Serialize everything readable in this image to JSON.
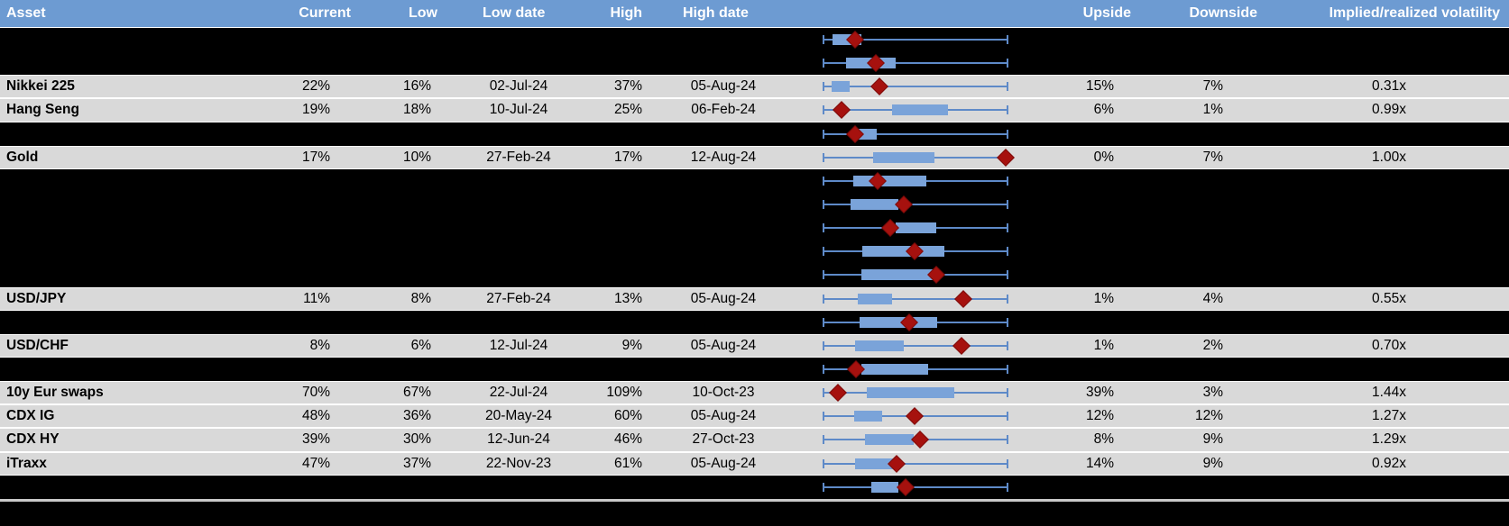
{
  "colors": {
    "header-bg": "#6D9BD2",
    "row-bg": "#D9D9D9",
    "whisker": "#5E8AC8",
    "box": "#7AA3D9",
    "diamond": "#A6110E",
    "divider": "#C9C9C9"
  },
  "header": {
    "columns": [
      "Asset",
      "Current",
      "Low",
      "Low date",
      "High",
      "High date",
      "Upside",
      "Downside",
      "Implied/realized volatility"
    ]
  },
  "rows": [
    {
      "type": "chart",
      "box": {
        "lo": 0.055,
        "hi": 0.208,
        "cur": 0.173
      }
    },
    {
      "type": "chart",
      "box": {
        "lo": 0.128,
        "hi": 0.395,
        "cur": 0.287
      }
    },
    {
      "type": "data",
      "label": "Nikkei 225",
      "current": "22%",
      "low": "16%",
      "low_date": "02-Jul-24",
      "high": "37%",
      "high_date": "05-Aug-24",
      "upside": "15%",
      "downside": "7%",
      "implied_realized": "0.31x",
      "box": {
        "lo": 0.049,
        "hi": 0.146,
        "cur": 0.306
      }
    },
    {
      "type": "data",
      "label": "Hang Seng",
      "current": "19%",
      "low": "18%",
      "low_date": "10-Jul-24",
      "high": "25%",
      "high_date": "06-Feb-24",
      "upside": "6%",
      "downside": "1%",
      "implied_realized": "0.99x",
      "box": {
        "lo": 0.372,
        "hi": 0.676,
        "cur": 0.1
      }
    },
    {
      "type": "chart",
      "box": {
        "lo": 0.155,
        "hi": 0.293,
        "cur": 0.174
      }
    },
    {
      "type": "data",
      "label": "Gold",
      "current": "17%",
      "low": "10%",
      "low_date": "27-Feb-24",
      "high": "17%",
      "high_date": "12-Aug-24",
      "upside": "0%",
      "downside": "7%",
      "implied_realized": "1.00x",
      "box": {
        "lo": 0.272,
        "hi": 0.604,
        "cur": 0.985
      }
    },
    {
      "type": "chart",
      "box": {
        "lo": 0.165,
        "hi": 0.558,
        "cur": 0.295
      }
    },
    {
      "type": "chart",
      "box": {
        "lo": 0.149,
        "hi": 0.408,
        "cur": 0.435
      }
    },
    {
      "type": "chart",
      "box": {
        "lo": 0.393,
        "hi": 0.612,
        "cur": 0.364
      }
    },
    {
      "type": "chart",
      "box": {
        "lo": 0.214,
        "hi": 0.655,
        "cur": 0.495
      }
    },
    {
      "type": "chart",
      "box": {
        "lo": 0.209,
        "hi": 0.597,
        "cur": 0.61
      }
    },
    {
      "type": "data",
      "label": "USD/JPY",
      "current": "11%",
      "low": "8%",
      "low_date": "27-Feb-24",
      "high": "13%",
      "high_date": "05-Aug-24",
      "upside": "1%",
      "downside": "4%",
      "implied_realized": "0.55x",
      "box": {
        "lo": 0.187,
        "hi": 0.372,
        "cur": 0.755
      }
    },
    {
      "type": "chart",
      "box": {
        "lo": 0.2,
        "hi": 0.615,
        "cur": 0.465
      }
    },
    {
      "type": "data",
      "label": "USD/CHF",
      "current": "8%",
      "low": "6%",
      "low_date": "12-Jul-24",
      "high": "9%",
      "high_date": "05-Aug-24",
      "upside": "1%",
      "downside": "2%",
      "implied_realized": "0.70x",
      "box": {
        "lo": 0.174,
        "hi": 0.438,
        "cur": 0.748
      }
    },
    {
      "type": "chart",
      "box": {
        "lo": 0.209,
        "hi": 0.57,
        "cur": 0.182
      }
    },
    {
      "type": "data",
      "label": "10y Eur swaps",
      "current": "70%",
      "low": "67%",
      "low_date": "22-Jul-24",
      "high": "109%",
      "high_date": "10-Oct-23",
      "upside": "39%",
      "downside": "3%",
      "implied_realized": "1.44x",
      "box": {
        "lo": 0.24,
        "hi": 0.708,
        "cur": 0.082
      }
    },
    {
      "type": "data",
      "label": "CDX IG",
      "current": "48%",
      "low": "36%",
      "low_date": "20-May-24",
      "high": "60%",
      "high_date": "05-Aug-24",
      "upside": "12%",
      "downside": "12%",
      "implied_realized": "1.27x",
      "box": {
        "lo": 0.169,
        "hi": 0.319,
        "cur": 0.496
      }
    },
    {
      "type": "data",
      "label": "CDX HY",
      "current": "39%",
      "low": "30%",
      "low_date": "12-Jun-24",
      "high": "46%",
      "high_date": "27-Oct-23",
      "upside": "8%",
      "downside": "9%",
      "implied_realized": "1.29x",
      "box": {
        "lo": 0.227,
        "hi": 0.491,
        "cur": 0.525
      }
    },
    {
      "type": "data",
      "label": "iTraxx",
      "current": "47%",
      "low": "37%",
      "low_date": "22-Nov-23",
      "high": "61%",
      "high_date": "05-Aug-24",
      "upside": "14%",
      "downside": "9%",
      "implied_realized": "0.92x",
      "box": {
        "lo": 0.174,
        "hi": 0.395,
        "cur": 0.4
      }
    },
    {
      "type": "chart",
      "box": {
        "lo": 0.262,
        "hi": 0.408,
        "cur": 0.447
      }
    }
  ]
}
